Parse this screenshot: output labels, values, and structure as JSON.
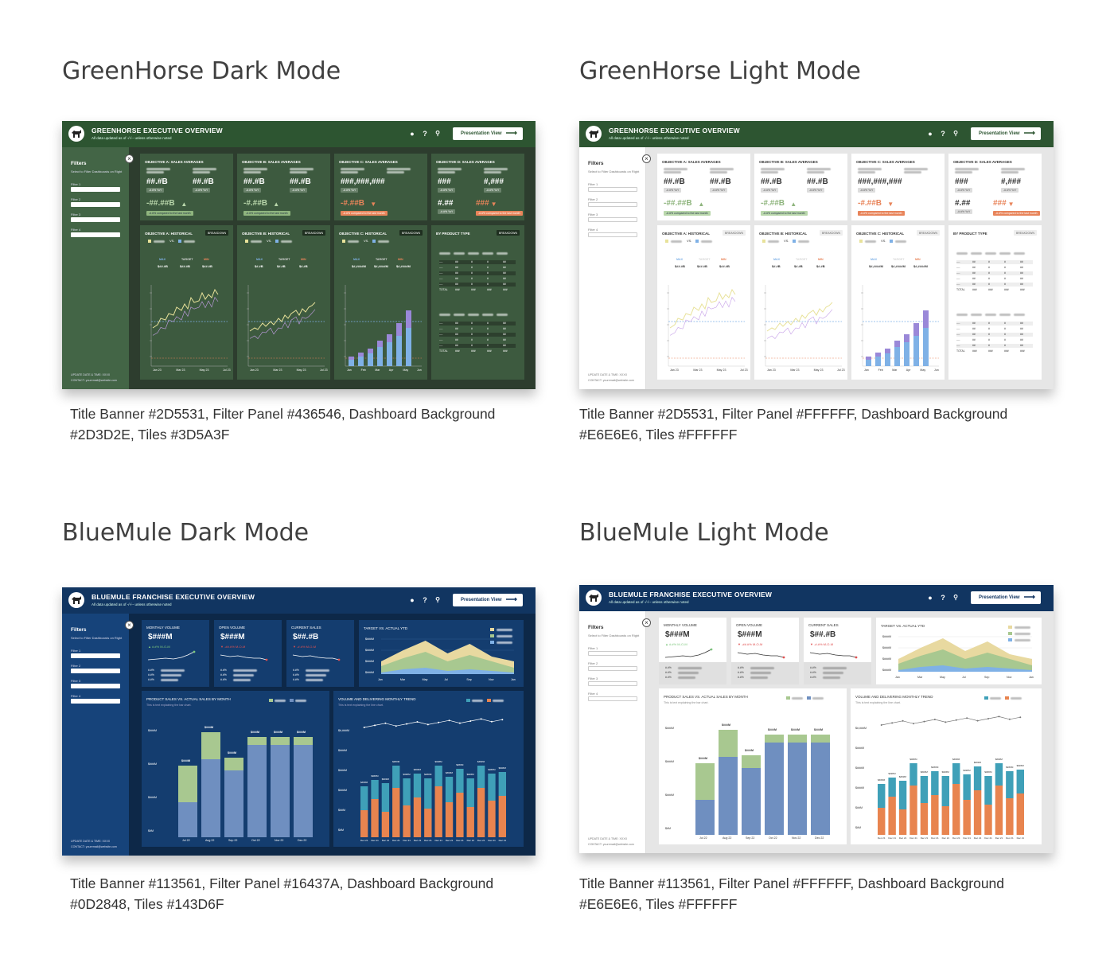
{
  "panels": [
    {
      "id": "greenhorse-dark",
      "heading": "GreenHorse Dark Mode",
      "caption": "Title Banner #2D5531, Filter Panel #436546, Dashboard Background #2D3D2E, Tiles #3D5A3F",
      "banner_title": "GREENHORSE EXECUTIVE OVERVIEW",
      "banner_subtitle": "All data updated as of -/-/-- unless otherwise noted",
      "colors": {
        "banner": "#2D5531",
        "filter": "#436546",
        "bg": "#2D3D2E",
        "tile": "#3D5A3F"
      }
    },
    {
      "id": "greenhorse-light",
      "heading": "GreenHorse Light Mode",
      "caption": "Title Banner #2D5531, Filter Panel #FFFFFF, Dashboard Background #E6E6E6, Tiles #FFFFFF",
      "banner_title": "GREENHORSE EXECUTIVE OVERVIEW",
      "banner_subtitle": "All data updated as of -/-/-- unless otherwise noted",
      "colors": {
        "banner": "#2D5531",
        "filter": "#FFFFFF",
        "bg": "#E6E6E6",
        "tile": "#FFFFFF"
      }
    },
    {
      "id": "bluemule-dark",
      "heading": "BlueMule Dark Mode",
      "caption": "Title Banner #113561, Filter Panel #16437A, Dashboard Background #0D2848, Tiles #143D6F",
      "banner_title": "BLUEMULE FRANCHISE EXECUTIVE OVERVIEW",
      "banner_subtitle": "All data updated as of -/-/-- unless otherwise noted",
      "colors": {
        "banner": "#113561",
        "filter": "#16437A",
        "bg": "#0D2848",
        "tile": "#143D6F"
      }
    },
    {
      "id": "bluemule-light",
      "heading": "BlueMule Light Mode",
      "caption": "Title Banner #113561, Filter Panel #FFFFFF, Dashboard Background #E6E6E6, Tiles #FFFFFF",
      "banner_title": "BLUEMULE FRANCHISE EXECUTIVE OVERVIEW",
      "banner_subtitle": "All data updated as of -/-/-- unless otherwise noted",
      "colors": {
        "banner": "#113561",
        "filter": "#FFFFFF",
        "bg": "#E6E6E6",
        "tile": "#FFFFFF"
      }
    }
  ],
  "common": {
    "presentation_button": "Presentation View",
    "filters_title": "Filters",
    "filters_subtitle": "Select to Filter Dashboards on Right",
    "filter_labels": [
      "Filter 1",
      "Filter 2",
      "Filter 3",
      "Filter 4"
    ],
    "update_text": "UPDATE DATE & TIME: XXXX",
    "contact_text": "CONTACT: youremail@website.com",
    "icons": [
      "lightbulb-icon",
      "help-icon",
      "search-icon"
    ],
    "help_glyph": "?"
  },
  "greenhorse": {
    "kpi_tiles": [
      {
        "label": "OBJECTIVE A: SALES AVERAGES",
        "v1": "##.#B",
        "v2": "##.#B",
        "delta": "-##.##B",
        "dir": "up",
        "note": "-#.#% compared to the last month"
      },
      {
        "label": "OBJECTIVE B: SALES AVERAGES",
        "v1": "##.#B",
        "v2": "##.#B",
        "delta": "-#.##B",
        "dir": "up",
        "note": "-#.#% compared to the last month"
      },
      {
        "label": "OBJECTIVE C: SALES AVERAGES",
        "v1": "###,###,###",
        "v2": "",
        "delta": "-#.##B",
        "dir": "down",
        "note": "-#.#% compared to the last month"
      },
      {
        "label": "OBJECTIVE D: SALES AVERAGES",
        "v1": "###",
        "v2": "#,###",
        "delta": "###",
        "dir": "down",
        "v3": "#.##",
        "note": "-#.#% compared to the last month"
      }
    ],
    "mini_chip": "-#.#% YoY",
    "hist_tiles": [
      {
        "label": "OBJECTIVE A: HISTORICAL",
        "stats": [
          "MAX",
          "TARGET",
          "MIN"
        ],
        "vals": [
          "$##.#B",
          "$##.#B",
          "$##.#B"
        ],
        "months": [
          "Jan 23",
          "Mar 23",
          "May 23",
          "Jul 23"
        ]
      },
      {
        "label": "OBJECTIVE B: HISTORICAL",
        "stats": [
          "MAX",
          "TARGET",
          "MIN"
        ],
        "vals": [
          "$#.#B",
          "$#.#B",
          "$#.#B"
        ],
        "months": [
          "Jan 23",
          "Mar 23",
          "May 23",
          "Jul 23"
        ]
      },
      {
        "label": "OBJECTIVE C: HISTORICAL",
        "stats": [
          "MAX",
          "TARGET",
          "MIN"
        ],
        "vals": [
          "$#,####M",
          "$#,####M",
          "$#,####M"
        ],
        "months": [
          "Jan",
          "Feb",
          "Mar",
          "Apr",
          "May",
          "Jun"
        ]
      },
      {
        "label": "BY PRODUCT TYPE"
      }
    ],
    "breakdown": "BREAKDOWN",
    "vs": "VS.",
    "total": "TOTAL"
  },
  "bluemule": {
    "kpis": [
      {
        "label": "MONTHLY VOLUME",
        "value": "$###M",
        "delta": "#.#% M-O-M",
        "dir": "up"
      },
      {
        "label": "OPEN VOLUME",
        "value": "$###M",
        "delta": "-##.#% M-O-M",
        "dir": "down"
      },
      {
        "label": "CURRENT SALES",
        "value": "$##.#B",
        "delta": "-#.#% M-O-M",
        "dir": "down"
      }
    ],
    "target_tile": {
      "label": "TARGET VS. ACTUAL YTD",
      "months": [
        "Jan",
        "Mar",
        "May",
        "Jul",
        "Sep",
        "Nov",
        "Jan"
      ]
    },
    "sales_tile": {
      "label": "PRODUCT SALES VS. ACTUAL SALES BY MONTH",
      "sub": "This is text explaining the bar chart.",
      "months": [
        "Jul 22",
        "Aug 22",
        "Sep 22",
        "Oct 22",
        "Nov 22",
        "Dec 22"
      ],
      "bar_labels": [
        "$###M",
        "$###M",
        "$###M",
        "$###M",
        "$###M",
        "$###M"
      ],
      "y_labels": [
        "$###M",
        "$###M",
        "$###M",
        "$#M"
      ]
    },
    "volume_tile": {
      "label": "VOLUME AND DELIVERING MONTHLY TREND",
      "sub": "This is text explaining the line chart.",
      "y_labels": [
        "$#,###M",
        "$###M",
        "$###M",
        "$###M",
        "$##M",
        "$#M"
      ],
      "bar_label": "$###M"
    }
  },
  "chart_data": []
}
